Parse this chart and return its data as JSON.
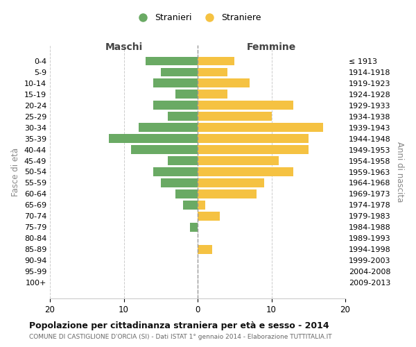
{
  "age_groups": [
    "0-4",
    "5-9",
    "10-14",
    "15-19",
    "20-24",
    "25-29",
    "30-34",
    "35-39",
    "40-44",
    "45-49",
    "50-54",
    "55-59",
    "60-64",
    "65-69",
    "70-74",
    "75-79",
    "80-84",
    "85-89",
    "90-94",
    "95-99",
    "100+"
  ],
  "birth_years": [
    "2009-2013",
    "2004-2008",
    "1999-2003",
    "1994-1998",
    "1989-1993",
    "1984-1988",
    "1979-1983",
    "1974-1978",
    "1969-1973",
    "1964-1968",
    "1959-1963",
    "1954-1958",
    "1949-1953",
    "1944-1948",
    "1939-1943",
    "1934-1938",
    "1929-1933",
    "1924-1928",
    "1919-1923",
    "1914-1918",
    "≤ 1913"
  ],
  "males": [
    7,
    5,
    6,
    3,
    6,
    4,
    8,
    12,
    9,
    4,
    6,
    5,
    3,
    2,
    0,
    1,
    0,
    0,
    0,
    0,
    0
  ],
  "females": [
    5,
    4,
    7,
    4,
    13,
    10,
    17,
    15,
    15,
    11,
    13,
    9,
    8,
    1,
    3,
    0,
    0,
    2,
    0,
    0,
    0
  ],
  "male_color": "#6aaa64",
  "female_color": "#f5c242",
  "background_color": "#ffffff",
  "grid_color": "#cccccc",
  "title": "Popolazione per cittadinanza straniera per età e sesso - 2014",
  "subtitle": "COMUNE DI CASTIGLIONE D'ORCIA (SI) - Dati ISTAT 1° gennaio 2014 - Elaborazione TUTTITALIA.IT",
  "xlabel_left": "Maschi",
  "xlabel_right": "Femmine",
  "ylabel_left": "Fasce di età",
  "ylabel_right": "Anni di nascita",
  "legend_male": "Stranieri",
  "legend_female": "Straniere",
  "xlim": 20
}
